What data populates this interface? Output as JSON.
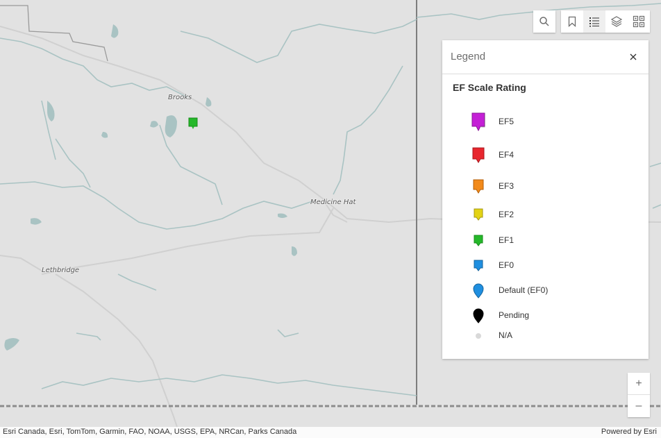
{
  "map": {
    "places": [
      {
        "name": "Brooks"
      },
      {
        "name": "Medicine Hat"
      },
      {
        "name": "Lethbridge"
      }
    ],
    "colors": {
      "land": "#e2e2e2",
      "water": "#a9c3c3",
      "border": "#7a7a7a",
      "road": "#cfcfcf"
    }
  },
  "toolbar": {
    "search_icon": "search-icon",
    "buttons": [
      "bookmark-icon",
      "list-icon",
      "layers-icon",
      "grid-icon"
    ]
  },
  "legend": {
    "title": "Legend",
    "layer_title": "EF Scale Rating",
    "items": [
      {
        "label": "EF5",
        "color": "#c41fd6"
      },
      {
        "label": "EF4",
        "color": "#e8262e"
      },
      {
        "label": "EF3",
        "color": "#f28a1a"
      },
      {
        "label": "EF2",
        "color": "#e3d315"
      },
      {
        "label": "EF1",
        "color": "#25b82a"
      },
      {
        "label": "EF0",
        "color": "#1f8fe0"
      },
      {
        "label": "Default (EF0)",
        "color": "#1f8fe0"
      },
      {
        "label": "Pending",
        "color": "#000000"
      },
      {
        "label": "N/A",
        "color": "#d9d9d9"
      }
    ]
  },
  "zoom": {
    "in_label": "+",
    "out_label": "–"
  },
  "attribution": {
    "text": "Esri Canada, Esri, TomTom, Garmin, FAO, NOAA, USGS, EPA, NRCan, Parks Canada",
    "powered_by": "Powered by Esri"
  }
}
